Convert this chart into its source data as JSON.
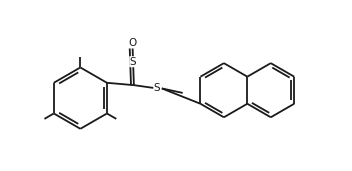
{
  "bg_color": "#ffffff",
  "line_color": "#1a1a1a",
  "line_width": 1.3,
  "font_size": 7.5,
  "fig_width": 3.52,
  "fig_height": 1.71,
  "dpi": 100,
  "xlim": [
    0.0,
    9.5
  ],
  "ylim": [
    0.5,
    5.2
  ]
}
